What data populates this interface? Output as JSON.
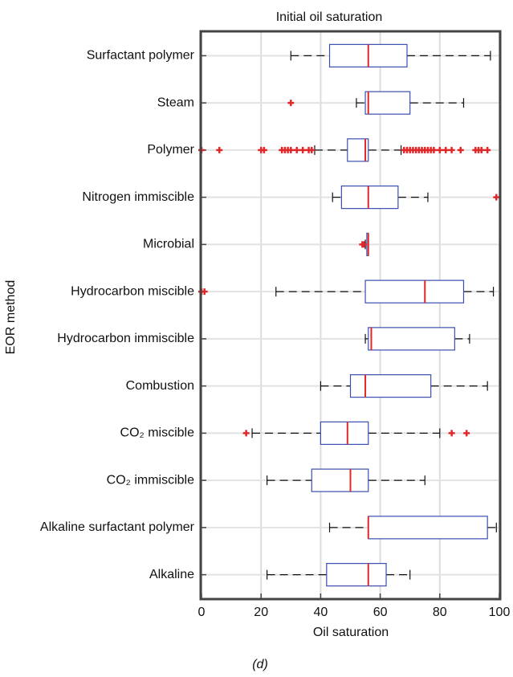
{
  "chart_data": {
    "type": "boxplot",
    "title": "Initial oil saturation",
    "x_label": "Oil saturation",
    "y_label": "EOR method",
    "caption": "(d)",
    "xlim": [
      0,
      100
    ],
    "xticks": [
      0,
      20,
      40,
      60,
      80,
      100
    ],
    "grid": true,
    "box_color": "#3a4fb0",
    "median_color": "#e0282a",
    "outlier_color": "#e0282a",
    "categories": [
      "Surfactant polymer",
      "Steam",
      "Polymer",
      "Nitrogen immiscible",
      "Microbial",
      "Hydrocarbon miscible",
      "Hydrocarbon immiscible",
      "Combustion",
      "CO₂ miscible",
      "CO₂ immiscible",
      "Alkaline surfactant polymer",
      "Alkaline"
    ],
    "boxes": [
      {
        "low": 30,
        "q1": 43,
        "median": 56,
        "q3": 69,
        "high": 97,
        "outliers": []
      },
      {
        "low": 52,
        "q1": 55,
        "median": 56,
        "q3": 70,
        "high": 88,
        "outliers": [
          30
        ]
      },
      {
        "low": 38,
        "q1": 49,
        "median": 55,
        "q3": 56,
        "high": 67,
        "outliers": [
          0,
          6,
          20,
          21,
          27,
          28,
          29,
          30,
          32,
          34,
          36,
          37,
          68,
          69,
          70,
          71,
          72,
          73,
          74,
          75,
          76,
          77,
          78,
          80,
          82,
          84,
          87,
          92,
          93,
          94,
          96
        ]
      },
      {
        "low": 44,
        "q1": 47,
        "median": 56,
        "q3": 66,
        "high": 76,
        "outliers": [
          99
        ]
      },
      {
        "low": 55,
        "q1": 55.5,
        "median": 56,
        "q3": 56,
        "high": 56,
        "outliers": [
          54,
          54.5
        ]
      },
      {
        "low": 25,
        "q1": 55,
        "median": 75,
        "q3": 88,
        "high": 98,
        "outliers": [
          0,
          1
        ]
      },
      {
        "low": 55,
        "q1": 56,
        "median": 57,
        "q3": 85,
        "high": 90,
        "outliers": []
      },
      {
        "low": 40,
        "q1": 50,
        "median": 55,
        "q3": 77,
        "high": 96,
        "outliers": []
      },
      {
        "low": 17,
        "q1": 40,
        "median": 49,
        "q3": 56,
        "high": 80,
        "outliers": [
          15,
          84,
          89
        ]
      },
      {
        "low": 22,
        "q1": 37,
        "median": 50,
        "q3": 56,
        "high": 75,
        "outliers": []
      },
      {
        "low": 43,
        "q1": 56,
        "median": 56,
        "q3": 96,
        "high": 99,
        "outliers": []
      },
      {
        "low": 22,
        "q1": 42,
        "median": 56,
        "q3": 62,
        "high": 70,
        "outliers": []
      }
    ]
  }
}
